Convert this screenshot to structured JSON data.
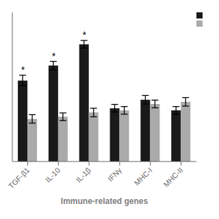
{
  "chart_data": {
    "type": "bar",
    "categories": [
      "TGF-β1",
      "IL-10",
      "IL-1β",
      "IFNγ",
      "MHC-I",
      "MHC-II"
    ],
    "series": [
      {
        "color": "#1a1a1a",
        "values": [
          3.8,
          4.5,
          5.5,
          2.5,
          2.9,
          2.4
        ],
        "errors": [
          0.25,
          0.2,
          0.18,
          0.18,
          0.2,
          0.18
        ]
      },
      {
        "color": "#aaaaaa",
        "values": [
          2.0,
          2.1,
          2.3,
          2.4,
          2.7,
          2.8
        ],
        "errors": [
          0.2,
          0.18,
          0.2,
          0.18,
          0.18,
          0.2
        ]
      }
    ],
    "xlabel": "Immune-related genes",
    "ylim": [
      0,
      7.0
    ],
    "tick_labels": "x",
    "grid": false,
    "legend": "upper right",
    "annotations": [
      {
        "text": "*",
        "x": "TGF-β1"
      },
      {
        "text": "*",
        "x": "IL-10"
      },
      {
        "text": "*",
        "x": "IL-1β"
      }
    ]
  }
}
